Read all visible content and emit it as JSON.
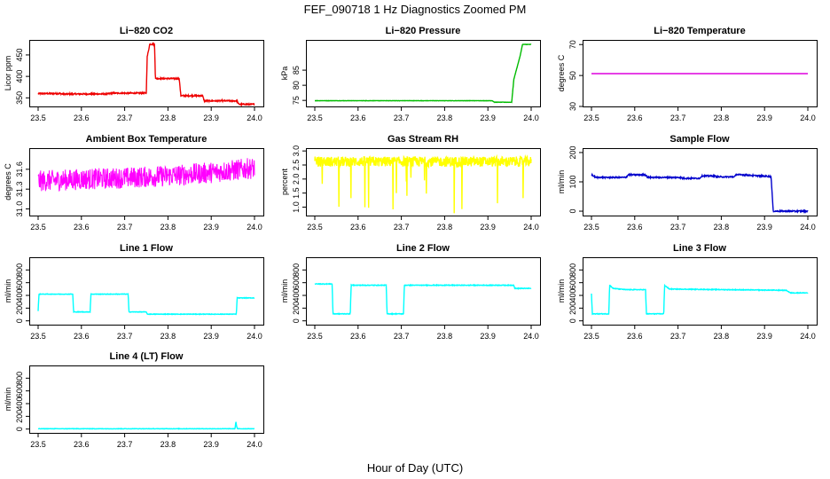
{
  "page": {
    "title": "FEF_090718  1 Hz Diagnostics Zoomed PM",
    "xlabel": "Hour of Day (UTC)"
  },
  "colors": {
    "co2": "#ee0000",
    "pressure": "#00bb00",
    "temperature": "#dd00dd",
    "box_temp": "#ff00ff",
    "rh": "#ffff00",
    "sample_flow": "#0000cc",
    "line_flow": "#00ffff",
    "axis": "#000000"
  },
  "chart_data": [
    {
      "id": "co2",
      "type": "line",
      "title": "Li−820 CO2",
      "ylabel": "Licor ppm",
      "xlim": [
        23.5,
        24.0
      ],
      "ylim": [
        330,
        485
      ],
      "xticks": [
        "23.5",
        "23.6",
        "23.7",
        "23.8",
        "23.9",
        "24.0"
      ],
      "yticks": [
        "350",
        "400",
        "450"
      ],
      "ytick_values": [
        350,
        400,
        450
      ],
      "series": [
        {
          "color_key": "co2",
          "noise": 1.5,
          "x": [
            23.5,
            23.55,
            23.557,
            23.66,
            23.667,
            23.75,
            23.752,
            23.755,
            23.758,
            23.769,
            23.771,
            23.797,
            23.8,
            23.826,
            23.83,
            23.856,
            23.858,
            23.88,
            23.884,
            23.96,
            23.962,
            23.965,
            23.975,
            24.0
          ],
          "y": [
            360,
            360,
            359,
            359,
            361,
            361,
            445,
            460,
            475,
            475,
            395,
            395,
            395,
            395,
            355,
            355,
            355,
            355,
            343,
            343,
            337,
            335,
            335,
            335
          ]
        }
      ]
    },
    {
      "id": "pressure",
      "type": "line",
      "title": "Li−820 Pressure",
      "ylabel": "kPa",
      "xlim": [
        23.5,
        24.0
      ],
      "ylim": [
        73,
        95
      ],
      "xticks": [
        "23.5",
        "23.6",
        "23.7",
        "23.8",
        "23.9",
        "24.0"
      ],
      "yticks": [
        "75",
        "80",
        "85"
      ],
      "ytick_values": [
        75,
        80,
        85
      ],
      "series": [
        {
          "color_key": "pressure",
          "noise": 0.05,
          "x": [
            23.5,
            23.91,
            23.915,
            23.955,
            23.96,
            23.975,
            23.98,
            24.0
          ],
          "y": [
            74.9,
            74.9,
            74.4,
            74.4,
            82,
            90,
            93.5,
            93.5
          ]
        }
      ]
    },
    {
      "id": "temperature",
      "type": "line",
      "title": "Li−820 Temperature",
      "ylabel": "degrees C",
      "xlim": [
        23.5,
        24.0
      ],
      "ylim": [
        30,
        73
      ],
      "xticks": [
        "23.5",
        "23.6",
        "23.7",
        "23.8",
        "23.9",
        "24.0"
      ],
      "yticks": [
        "30",
        "50",
        "70"
      ],
      "ytick_values": [
        30,
        50,
        70
      ],
      "series": [
        {
          "color_key": "temperature",
          "noise": 0,
          "x": [
            23.5,
            24.0
          ],
          "y": [
            51.2,
            51.2
          ]
        }
      ]
    },
    {
      "id": "box_temp",
      "type": "line",
      "title": "Ambient Box Temperature",
      "ylabel": "degrees C",
      "xlim": [
        23.5,
        24.0
      ],
      "ylim": [
        30.9,
        31.92
      ],
      "xticks": [
        "23.5",
        "23.6",
        "23.7",
        "23.8",
        "23.9",
        "24.0"
      ],
      "yticks": [
        "31.0",
        "31.3",
        "31.6"
      ],
      "ytick_values": [
        31.0,
        31.3,
        31.6
      ],
      "series": [
        {
          "color_key": "box_temp",
          "noise": 0.16,
          "x": [
            23.5,
            23.6,
            23.7,
            23.8,
            23.9,
            24.0
          ],
          "y": [
            31.42,
            31.45,
            31.47,
            31.5,
            31.55,
            31.62
          ]
        }
      ]
    },
    {
      "id": "rh",
      "type": "line",
      "title": "Gas Stream RH",
      "ylabel": "percent",
      "xlim": [
        23.5,
        24.0
      ],
      "ylim": [
        0.7,
        3.1
      ],
      "xticks": [
        "23.5",
        "23.6",
        "23.7",
        "23.8",
        "23.9",
        "24.0"
      ],
      "yticks": [
        "1.0",
        "1.5",
        "2.0",
        "2.5",
        "3.0"
      ],
      "ytick_values": [
        1.0,
        1.5,
        2.0,
        2.5,
        3.0
      ],
      "series": [
        {
          "color_key": "rh",
          "noise": 0.18,
          "spikes": true,
          "x": [
            23.5,
            24.0
          ],
          "y": [
            2.62,
            2.62
          ]
        }
      ]
    },
    {
      "id": "sample_flow",
      "type": "line",
      "title": "Sample Flow",
      "ylabel": "ml/min",
      "xlim": [
        23.5,
        24.0
      ],
      "ylim": [
        -15,
        215
      ],
      "xticks": [
        "23.5",
        "23.6",
        "23.7",
        "23.8",
        "23.9",
        "24.0"
      ],
      "yticks": [
        "0",
        "100",
        "200"
      ],
      "ytick_values": [
        0,
        100,
        200
      ],
      "series": [
        {
          "color_key": "sample_flow",
          "noise": 2,
          "x": [
            23.5,
            23.51,
            23.515,
            23.58,
            23.585,
            23.625,
            23.63,
            23.705,
            23.71,
            23.75,
            23.755,
            23.785,
            23.79,
            23.83,
            23.835,
            23.915,
            23.92,
            24.0
          ],
          "y": [
            125,
            115,
            115,
            115,
            124,
            124,
            115,
            115,
            112,
            112,
            120,
            120,
            117,
            117,
            125,
            118,
            0,
            0
          ]
        }
      ]
    },
    {
      "id": "line1",
      "type": "line",
      "title": "Line 1 Flow",
      "ylabel": "ml/min",
      "xlim": [
        23.5,
        24.0
      ],
      "ylim": [
        -60,
        1000
      ],
      "xticks": [
        "23.5",
        "23.6",
        "23.7",
        "23.8",
        "23.9",
        "24.0"
      ],
      "yticks": [
        "0",
        "200",
        "400",
        "600",
        "800"
      ],
      "ytick_values": [
        0,
        200,
        400,
        600,
        800
      ],
      "series": [
        {
          "color_key": "line_flow",
          "noise": 4,
          "x": [
            23.5,
            23.502,
            23.58,
            23.582,
            23.62,
            23.622,
            23.708,
            23.71,
            23.75,
            23.752,
            23.958,
            23.96,
            24.0
          ],
          "y": [
            150,
            420,
            420,
            140,
            140,
            420,
            420,
            140,
            140,
            105,
            105,
            360,
            360
          ]
        }
      ]
    },
    {
      "id": "line2",
      "type": "line",
      "title": "Line 2 Flow",
      "ylabel": "ml/min",
      "xlim": [
        23.5,
        24.0
      ],
      "ylim": [
        -60,
        1000
      ],
      "xticks": [
        "23.5",
        "23.6",
        "23.7",
        "23.8",
        "23.9",
        "24.0"
      ],
      "yticks": [
        "0",
        "200",
        "400",
        "600",
        "800"
      ],
      "ytick_values": [
        0,
        200,
        400,
        600,
        800
      ],
      "series": [
        {
          "color_key": "line_flow",
          "noise": 5,
          "x": [
            23.5,
            23.54,
            23.542,
            23.582,
            23.584,
            23.665,
            23.667,
            23.705,
            23.707,
            23.96,
            23.962,
            24.0
          ],
          "y": [
            580,
            580,
            110,
            110,
            560,
            560,
            110,
            110,
            560,
            560,
            510,
            510
          ]
        }
      ]
    },
    {
      "id": "line3",
      "type": "line",
      "title": "Line 3 Flow",
      "ylabel": "ml/min",
      "xlim": [
        23.5,
        24.0
      ],
      "ylim": [
        -60,
        1000
      ],
      "xticks": [
        "23.5",
        "23.6",
        "23.7",
        "23.8",
        "23.9",
        "24.0"
      ],
      "yticks": [
        "0",
        "200",
        "400",
        "600",
        "800"
      ],
      "ytick_values": [
        0,
        200,
        400,
        600,
        800
      ],
      "series": [
        {
          "color_key": "line_flow",
          "noise": 5,
          "x": [
            23.5,
            23.502,
            23.54,
            23.542,
            23.55,
            23.58,
            23.625,
            23.627,
            23.667,
            23.669,
            23.68,
            23.95,
            23.96,
            24.0
          ],
          "y": [
            430,
            110,
            110,
            560,
            510,
            490,
            490,
            110,
            110,
            560,
            500,
            480,
            440,
            440
          ]
        }
      ]
    },
    {
      "id": "line4",
      "type": "line",
      "title": "Line 4 (LT) Flow",
      "ylabel": "ml/min",
      "xlim": [
        23.5,
        24.0
      ],
      "ylim": [
        -60,
        1000
      ],
      "xticks": [
        "23.5",
        "23.6",
        "23.7",
        "23.8",
        "23.9",
        "24.0"
      ],
      "yticks": [
        "0",
        "200",
        "400",
        "600",
        "800"
      ],
      "ytick_values": [
        0,
        200,
        400,
        600,
        800
      ],
      "series": [
        {
          "color_key": "line_flow",
          "noise": 3,
          "x": [
            23.5,
            23.955,
            23.957,
            23.959,
            23.961,
            24.0
          ],
          "y": [
            5,
            5,
            120,
            30,
            5,
            5
          ]
        }
      ]
    }
  ]
}
